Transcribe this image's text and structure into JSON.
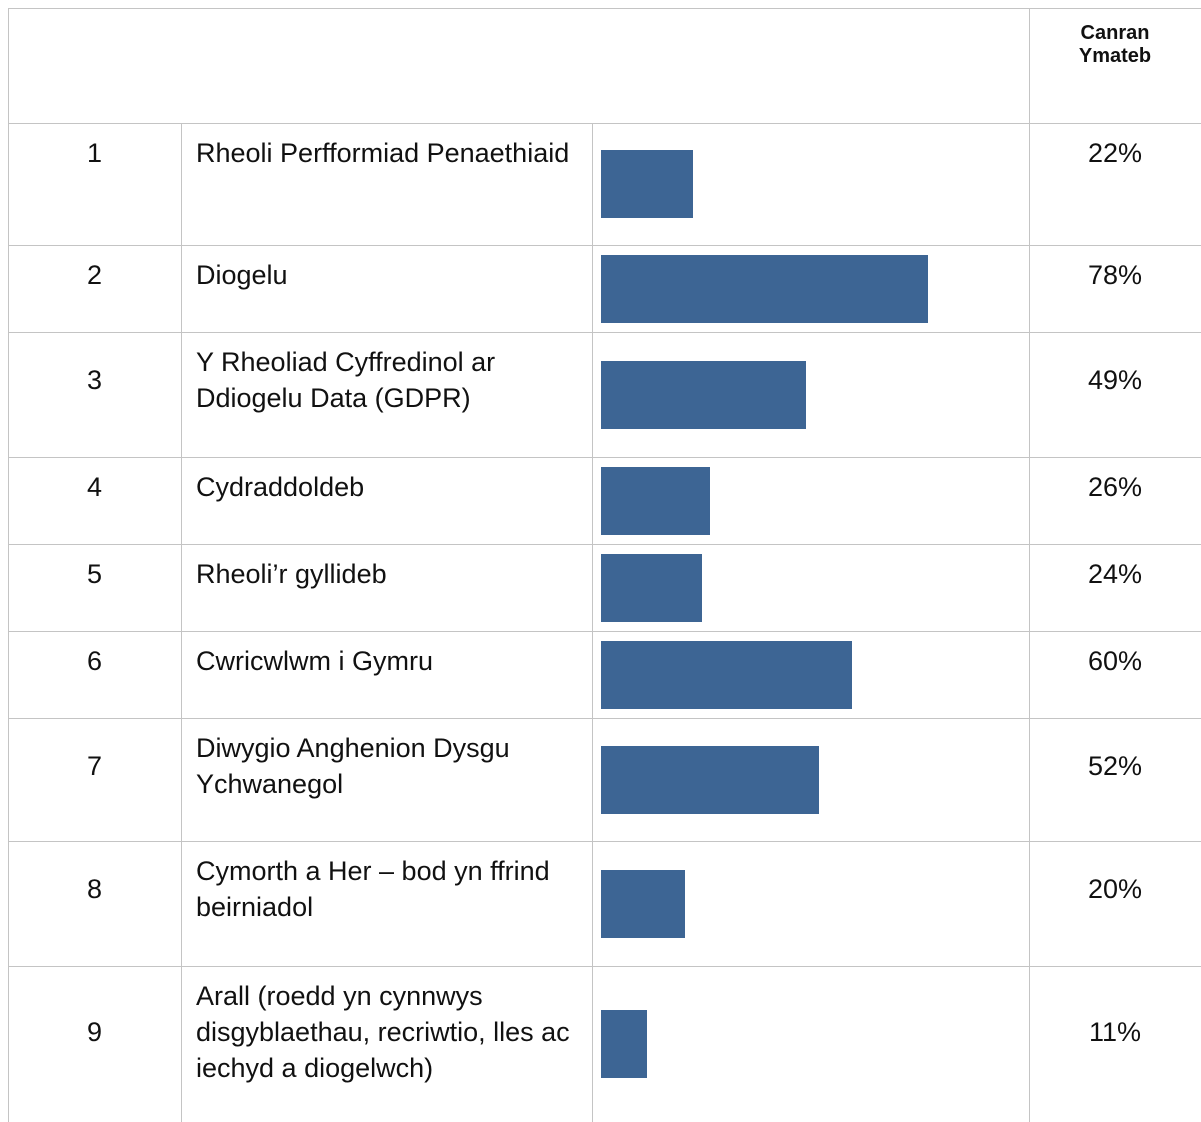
{
  "table": {
    "header": "Canran Ymateb",
    "rows": [
      {
        "number": 1,
        "label": "Rheoli Perfformiad Penaethiaid",
        "value": 22,
        "value_label": "22%"
      },
      {
        "number": 2,
        "label": "Diogelu",
        "value": 78,
        "value_label": "78%"
      },
      {
        "number": 3,
        "label": "Y Rheoliad Cyffredinol ar Ddiogelu Data (GDPR)",
        "value": 49,
        "value_label": "49%"
      },
      {
        "number": 4,
        "label": "Cydraddoldeb",
        "value": 26,
        "value_label": "26%"
      },
      {
        "number": 5,
        "label": "Rheoli’r gyllideb",
        "value": 24,
        "value_label": "24%"
      },
      {
        "number": 6,
        "label": "Cwricwlwm i Gymru",
        "value": 60,
        "value_label": "60%"
      },
      {
        "number": 7,
        "label": "Diwygio Anghenion Dysgu Ychwanegol",
        "value": 52,
        "value_label": "52%"
      },
      {
        "number": 8,
        "label": "Cymorth a Her – bod yn ffrind beirniadol",
        "value": 20,
        "value_label": "20%"
      },
      {
        "number": 9,
        "label": "Arall (roedd yn cynnwys disgyblaethau, recriwtio, lles ac iechyd a diogelwch)",
        "value": 11,
        "value_label": "11%"
      }
    ]
  }
}
